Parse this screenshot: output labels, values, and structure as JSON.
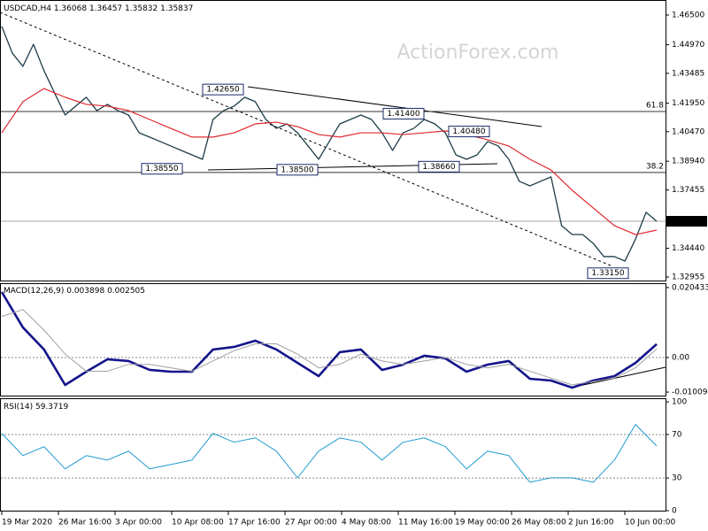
{
  "chart_data": [
    {
      "type": "line",
      "title": "USDCAD,H4",
      "ohlc": [
        1.36068,
        1.36457,
        1.35832,
        1.35837
      ],
      "watermark": "ActionForex.com",
      "ylim": [
        1.32772,
        1.47278
      ],
      "yticks": [
        {
          "value": 1.465,
          "label": "1.46500"
        },
        {
          "value": 1.4497,
          "label": "1.44970"
        },
        {
          "value": 1.43485,
          "label": "1.43485"
        },
        {
          "value": 1.4195,
          "label": "1.41950"
        },
        {
          "value": 1.4047,
          "label": "1.40470"
        },
        {
          "value": 1.3894,
          "label": "1.38940"
        },
        {
          "value": 1.37455,
          "label": "1.37455"
        },
        {
          "value": 1.3444,
          "label": "1.34440"
        },
        {
          "value": 1.32955,
          "label": "1.32955"
        }
      ],
      "current_price": 1.35837,
      "grid": false,
      "levels": [
        {
          "label": "61.8",
          "value": 1.4151
        },
        {
          "label": "38.2",
          "value": 1.3836
        }
      ],
      "annotations": [
        {
          "value": 1.4265,
          "label": "1.42650"
        },
        {
          "value": 1.3855,
          "label": "1.38550"
        },
        {
          "value": 1.385,
          "label": "1.38500"
        },
        {
          "value": 1.414,
          "label": "1.41400"
        },
        {
          "value": 1.4048,
          "label": "1.40480"
        },
        {
          "value": 1.3866,
          "label": "1.38660"
        },
        {
          "value": 1.3315,
          "label": "1.33150"
        }
      ],
      "series": [
        {
          "name": "USDCAD",
          "color": "#1d3c48",
          "width": 1.3,
          "values": [
            1.4591,
            1.4453,
            1.4385,
            1.4499,
            1.4362,
            1.4247,
            1.4133,
            1.4179,
            1.4225,
            1.4156,
            1.4188,
            1.4156,
            1.4133,
            1.4041,
            1.4019,
            1.3996,
            1.3973,
            1.395,
            1.3927,
            1.3904,
            1.411,
            1.4156,
            1.4179,
            1.4225,
            1.4202,
            1.411,
            1.4064,
            1.4087,
            1.4041,
            1.3973,
            1.3904,
            1.3996,
            1.4087,
            1.411,
            1.4133,
            1.411,
            1.4041,
            1.395,
            1.4041,
            1.4064,
            1.411,
            1.4087,
            1.4041,
            1.3927,
            1.3904,
            1.3927,
            1.3996,
            1.3973,
            1.3904,
            1.379,
            1.3767,
            1.379,
            1.3813,
            1.3561,
            1.3515,
            1.3515,
            1.3469,
            1.3401,
            1.3401,
            1.3378,
            1.3492,
            1.363,
            1.3584
          ]
        },
        {
          "name": "MA",
          "color": "#e0282e",
          "width": 1.2,
          "values": [
            1.4041,
            1.4202,
            1.427,
            1.4225,
            1.4188,
            1.4179,
            1.4156,
            1.411,
            1.4064,
            1.4019,
            1.4019,
            1.4041,
            1.4087,
            1.4096,
            1.4073,
            1.4032,
            1.4019,
            1.4041,
            1.4041,
            1.4032,
            1.4041,
            1.4051,
            1.4032,
            1.4005,
            1.3973,
            1.3904,
            1.3849,
            1.3744,
            1.3652,
            1.3561,
            1.3515,
            1.3538
          ]
        }
      ]
    },
    {
      "type": "line",
      "title": "MACD(12,26,9)",
      "readings": [
        0.003898,
        0.002505
      ],
      "ylim": [
        -0.01112,
        0.0217
      ],
      "yticks": [
        0.020433,
        {
          "value": 0,
          "label": "0.00"
        },
        -0.010099
      ],
      "grid": true,
      "series": [
        {
          "name": "MACD",
          "color": "#14148c",
          "width": 2.6,
          "values": [
            0.01914,
            0.00879,
            0.00233,
            -0.00802,
            -0.00414,
            -0.00052,
            -0.00103,
            -0.00362,
            -0.00414,
            -0.00414,
            0.00233,
            0.0031,
            0.00491,
            0.00233,
            -0.00155,
            -0.00543,
            0.00155,
            0.00233,
            -0.00362,
            -0.00207,
            0.00052,
            -0.00026,
            -0.00414,
            -0.00207,
            -0.00103,
            -0.00621,
            -0.00673,
            -0.00879,
            -0.00673,
            -0.00543,
            -0.00155,
            0.003898
          ]
        },
        {
          "name": "Signal",
          "color": "#a0a0a0",
          "width": 1,
          "values": [
            0.012,
            0.014,
            0.008,
            0.001,
            -0.004,
            -0.004,
            -0.002,
            -0.002,
            -0.003,
            -0.004,
            -0.001,
            0.002,
            0.004,
            0.004,
            0.001,
            -0.003,
            -0.002,
            0.001,
            -0.001,
            -0.002,
            -0.001,
            0,
            -0.002,
            -0.003,
            -0.002,
            -0.004,
            -0.006,
            -0.008,
            -0.007,
            -0.006,
            -0.003,
            0.002505
          ]
        }
      ]
    },
    {
      "type": "line",
      "title": "RSI(14)",
      "readings": [
        59.3719
      ],
      "ylim": [
        0,
        102.5
      ],
      "yticks": [
        100,
        70,
        30,
        0
      ],
      "grid": true,
      "xticks": [
        "19 Mar 2020",
        "26 Mar 16:00",
        "3 Apr 00:00",
        "10 Apr 08:00",
        "17 Apr 16:00",
        "27 Apr 00:00",
        "4 May 08:00",
        "11 May 16:00",
        "19 May 00:00",
        "26 May 08:00",
        "2 Jun 16:00",
        "10 Jun 00:00"
      ],
      "series": [
        {
          "name": "RSI",
          "color": "#1f9bcf",
          "width": 1,
          "values": [
            71.0,
            50.6,
            58.8,
            38.4,
            50.6,
            46.5,
            54.7,
            38.4,
            42.4,
            46.5,
            71.0,
            62.9,
            66.9,
            54.7,
            30.2,
            54.7,
            66.9,
            62.9,
            46.5,
            62.9,
            66.9,
            58.8,
            38.4,
            54.7,
            50.6,
            26.1,
            30.2,
            30.2,
            26.1,
            46.5,
            79.2,
            59.3719
          ]
        }
      ]
    }
  ]
}
